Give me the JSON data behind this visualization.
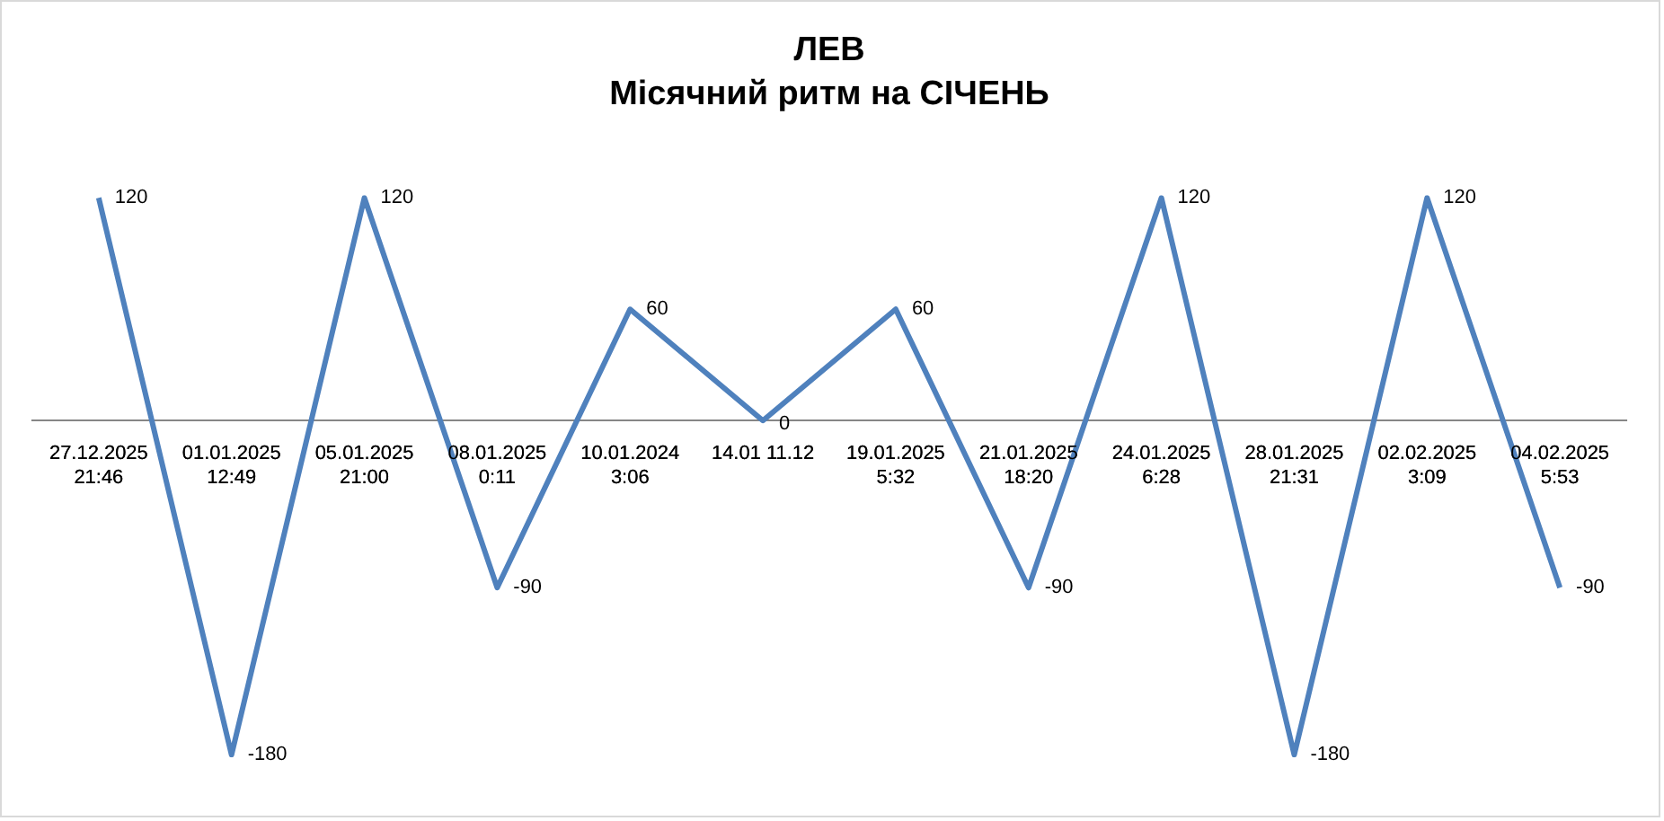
{
  "chart_data": {
    "type": "line",
    "title": "ЛЕВ",
    "subtitle": "Місячний ритм на СІЧЕНЬ",
    "categories": [
      "27.12.2025\n21:46",
      "01.01.2025\n12:49",
      "05.01.2025\n21:00",
      "08.01.2025\n0:11",
      "10.01.2024\n3:06",
      "14.01 11.12",
      "19.01.2025\n5:32",
      "21.01.2025\n18:20",
      "24.01.2025\n6:28",
      "28.01.2025\n21:31",
      "02.02.2025\n3:09",
      "04.02.2025\n5:53"
    ],
    "series": [
      {
        "color": "#4f81bd",
        "values": [
          120,
          -180,
          120,
          -90,
          60,
          0,
          60,
          -90,
          120,
          -180,
          120,
          -90
        ]
      }
    ],
    "data_labels": true,
    "grid": false,
    "legend": false,
    "marker": "none",
    "line_style": "solid"
  }
}
